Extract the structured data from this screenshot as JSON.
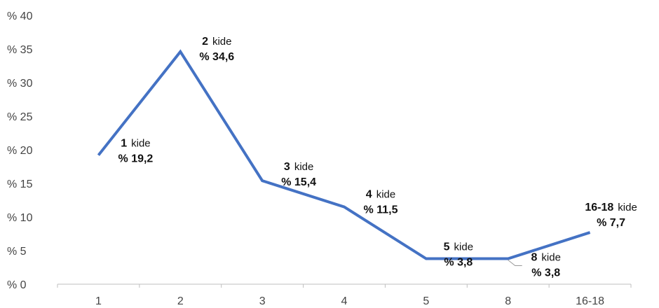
{
  "chart_data": {
    "type": "line",
    "title": "",
    "xlabel": "",
    "ylabel": "",
    "ylim": [
      0,
      40
    ],
    "y_ticks": [
      0,
      5,
      10,
      15,
      20,
      25,
      30,
      35,
      40
    ],
    "y_tick_labels": [
      "% 0",
      "% 5",
      "% 10",
      "% 15",
      "% 20",
      "% 25",
      "% 30",
      "% 35",
      "% 40"
    ],
    "categories": [
      "1",
      "2",
      "3",
      "4",
      "5",
      "8",
      "16-18"
    ],
    "series": [
      {
        "values": [
          19.2,
          34.6,
          15.4,
          11.5,
          3.8,
          3.8,
          7.7
        ],
        "color": "#4472C4"
      }
    ],
    "grid": false,
    "data_labels": [
      {
        "num": "1",
        "unit": "kide",
        "value": "% 19,2"
      },
      {
        "num": "2",
        "unit": "kide",
        "value": "% 34,6"
      },
      {
        "num": "3",
        "unit": "kide",
        "value": "% 15,4"
      },
      {
        "num": "4",
        "unit": "kide",
        "value": "% 11,5"
      },
      {
        "num": "5",
        "unit": "kide",
        "value": "% 3,8"
      },
      {
        "num": "8",
        "unit": "kide",
        "value": "% 3,8"
      },
      {
        "num": "16-18",
        "unit": "kide",
        "value": "% 7,7"
      }
    ],
    "axis_color": "#bfbfbf",
    "label_color": "#111111"
  }
}
